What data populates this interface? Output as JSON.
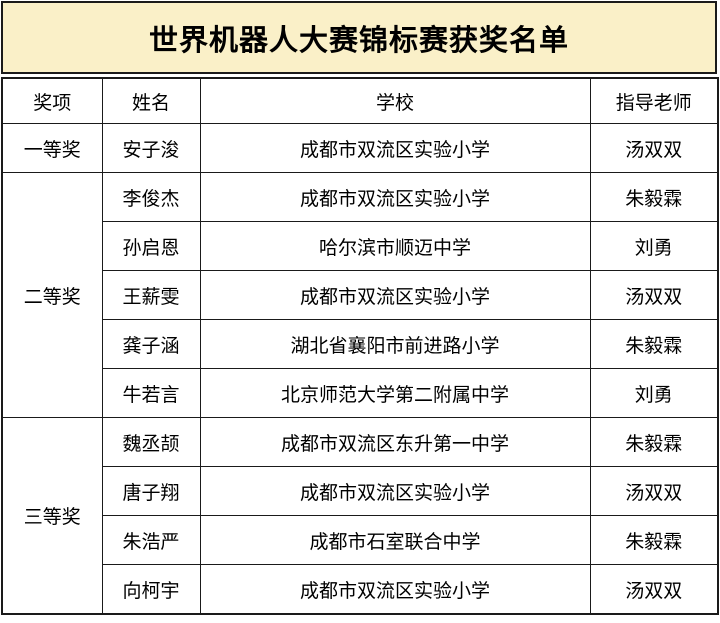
{
  "title": "世界机器人大赛锦标赛获奖名单",
  "colors": {
    "title_background": "#faf0c8",
    "border": "#1a1a1a",
    "text": "#000000",
    "cell_background": "#ffffff"
  },
  "table": {
    "headers": [
      "奖项",
      "姓名",
      "学校",
      "指导老师"
    ],
    "groups": [
      {
        "award": "一等奖",
        "rows": [
          {
            "name": "安子浚",
            "school": "成都市双流区实验小学",
            "teacher": "汤双双"
          }
        ]
      },
      {
        "award": "二等奖",
        "rows": [
          {
            "name": "李俊杰",
            "school": "成都市双流区实验小学",
            "teacher": "朱毅霖"
          },
          {
            "name": "孙启恩",
            "school": "哈尔滨市顺迈中学",
            "teacher": "刘勇"
          },
          {
            "name": "王薪雯",
            "school": "成都市双流区实验小学",
            "teacher": "汤双双"
          },
          {
            "name": "龚子涵",
            "school": "湖北省襄阳市前进路小学",
            "teacher": "朱毅霖"
          },
          {
            "name": "牛若言",
            "school": "北京师范大学第二附属中学",
            "teacher": "刘勇"
          }
        ]
      },
      {
        "award": "三等奖",
        "rows": [
          {
            "name": "魏丞颉",
            "school": "成都市双流区东升第一中学",
            "teacher": "朱毅霖"
          },
          {
            "name": "唐子翔",
            "school": "成都市双流区实验小学",
            "teacher": "汤双双"
          },
          {
            "name": "朱浩严",
            "school": "成都市石室联合中学",
            "teacher": "朱毅霖"
          },
          {
            "name": "向柯宇",
            "school": "成都市双流区实验小学",
            "teacher": "汤双双"
          }
        ]
      }
    ]
  }
}
